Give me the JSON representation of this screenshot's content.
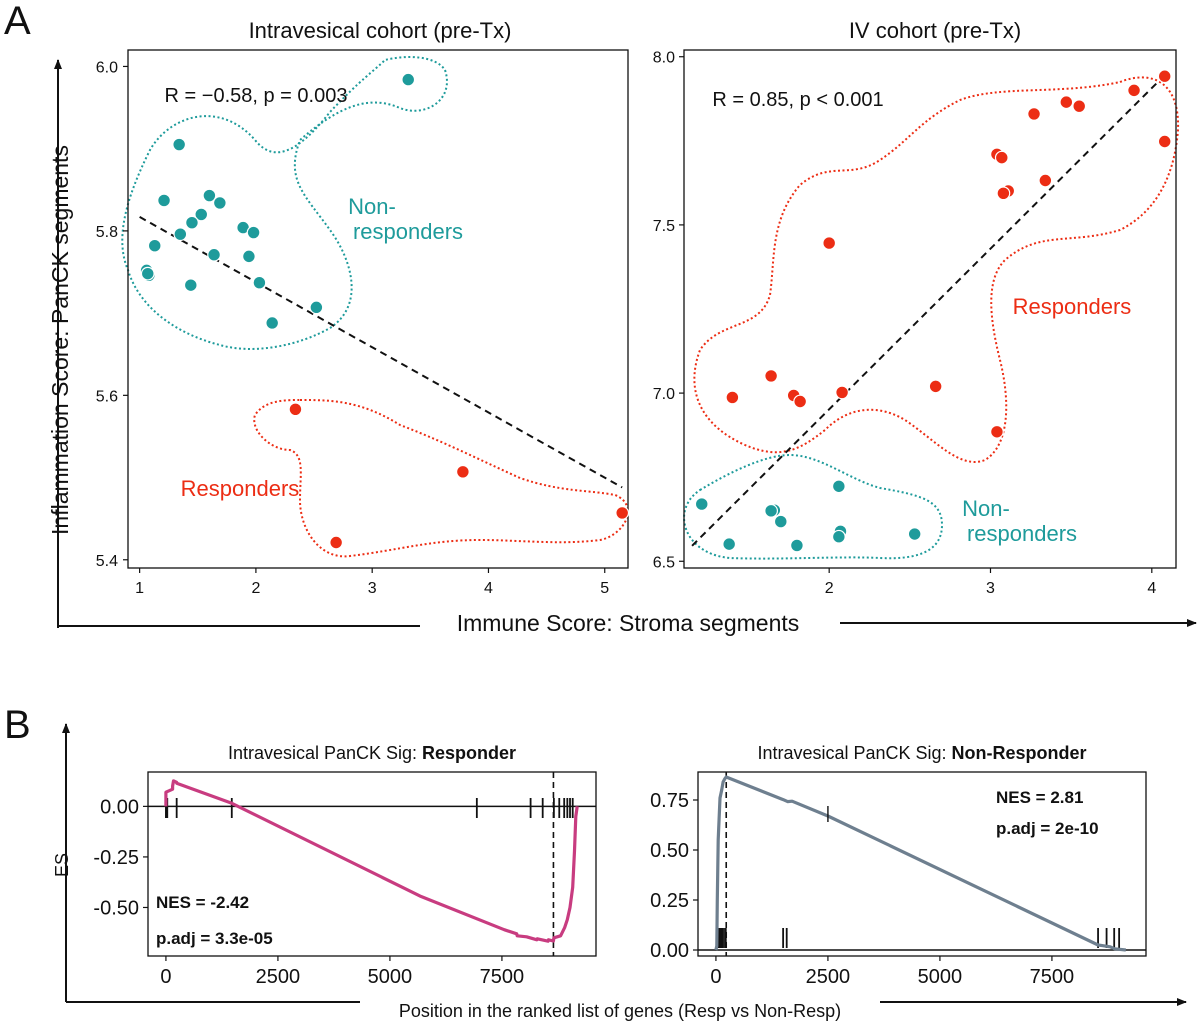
{
  "figure": {
    "panel_a_label": "A",
    "panel_b_label": "B",
    "a_ylabel": "Inflammation Score: PanCK segments",
    "a_xlabel": "Immune Score: Stroma segments",
    "b_ylabel": "ES",
    "b_xlabel": "Position in the ranked list of genes (Resp vs Non-Resp)"
  },
  "colors": {
    "teal": "#1e9b9b",
    "red": "#ec2d14",
    "magenta": "#c83c80",
    "slate": "#6e7f8f",
    "black": "#111111"
  },
  "chart_data": [
    {
      "type": "scatter",
      "title": "Intravesical cohort (pre-Tx)",
      "xlim": [
        0.9,
        5.2
      ],
      "ylim": [
        5.39,
        6.02
      ],
      "xticks": [
        1,
        2,
        3,
        4,
        5
      ],
      "yticks": [
        5.4,
        5.6,
        5.8,
        6.0
      ],
      "ytick_labels": [
        "5.4",
        "5.6",
        "5.8",
        "6.0"
      ],
      "annotation": "R = −0.58, p = 0.003",
      "trend_line": [
        [
          1.0,
          5.817
        ],
        [
          5.15,
          5.488
        ]
      ],
      "groups": [
        {
          "name": "Non-responders",
          "label_lines": [
            "Non-",
            "responders"
          ],
          "color": "teal",
          "points": [
            [
              3.31,
              5.984
            ],
            [
              1.34,
              5.905
            ],
            [
              1.21,
              5.837
            ],
            [
              1.6,
              5.843
            ],
            [
              1.69,
              5.834
            ],
            [
              1.53,
              5.82
            ],
            [
              1.45,
              5.81
            ],
            [
              1.89,
              5.804
            ],
            [
              1.35,
              5.796
            ],
            [
              1.98,
              5.798
            ],
            [
              1.13,
              5.782
            ],
            [
              1.64,
              5.771
            ],
            [
              1.94,
              5.769
            ],
            [
              1.06,
              5.752
            ],
            [
              1.08,
              5.746
            ],
            [
              1.07,
              5.748
            ],
            [
              2.03,
              5.737
            ],
            [
              1.44,
              5.734
            ],
            [
              2.52,
              5.707
            ],
            [
              2.14,
              5.688
            ]
          ]
        },
        {
          "name": "Responders",
          "label_lines": [
            "Responders"
          ],
          "color": "red",
          "points": [
            [
              2.34,
              5.583
            ],
            [
              3.78,
              5.507
            ],
            [
              5.15,
              5.457
            ],
            [
              2.69,
              5.421
            ]
          ]
        }
      ]
    },
    {
      "type": "scatter",
      "title": "IV cohort (pre-Tx)",
      "xlim": [
        1.1,
        4.15
      ],
      "ylim": [
        6.48,
        8.02
      ],
      "xticks": [
        2,
        3,
        4
      ],
      "yticks": [
        6.5,
        7.0,
        7.5,
        8.0
      ],
      "ytick_labels": [
        "6.5",
        "7.0",
        "7.5",
        "8.0"
      ],
      "annotation": "R = 0.85, p < 0.001",
      "trend_line": [
        [
          1.15,
          6.546
        ],
        [
          4.08,
          7.945
        ]
      ],
      "groups": [
        {
          "name": "Responders",
          "label_lines": [
            "Responders"
          ],
          "color": "red",
          "points": [
            [
              4.08,
              7.942
            ],
            [
              3.89,
              7.9
            ],
            [
              3.47,
              7.865
            ],
            [
              3.55,
              7.853
            ],
            [
              3.27,
              7.83
            ],
            [
              4.08,
              7.748
            ],
            [
              3.04,
              7.71
            ],
            [
              3.07,
              7.7
            ],
            [
              3.34,
              7.632
            ],
            [
              3.11,
              7.601
            ],
            [
              3.08,
              7.594
            ],
            [
              2.0,
              7.446
            ],
            [
              1.64,
              7.051
            ],
            [
              2.66,
              7.02
            ],
            [
              2.08,
              7.002
            ],
            [
              1.78,
              6.993
            ],
            [
              1.4,
              6.987
            ],
            [
              1.82,
              6.975
            ],
            [
              3.04,
              6.885
            ]
          ]
        },
        {
          "name": "Non-responders",
          "label_lines": [
            "Non-",
            "responders"
          ],
          "color": "teal",
          "points": [
            [
              2.06,
              6.723
            ],
            [
              1.21,
              6.67
            ],
            [
              1.66,
              6.652
            ],
            [
              1.64,
              6.65
            ],
            [
              1.7,
              6.618
            ],
            [
              2.07,
              6.589
            ],
            [
              2.53,
              6.581
            ],
            [
              2.06,
              6.573
            ],
            [
              1.38,
              6.551
            ],
            [
              1.8,
              6.547
            ]
          ]
        }
      ]
    },
    {
      "type": "line",
      "title_prefix": "Intravesical PanCK Sig: ",
      "title_bold": "Responder",
      "xlim": [
        -400,
        9600
      ],
      "ylim": [
        -0.74,
        0.17
      ],
      "xticks": [
        0,
        2500,
        5000,
        7500
      ],
      "xtick_labels": [
        "0",
        "2500",
        "5000",
        "7500"
      ],
      "yticks": [
        0.0,
        -0.25,
        -0.5
      ],
      "ytick_labels": [
        "0.00",
        "-0.25",
        "-0.50"
      ],
      "peak_x": 8650,
      "nes": "NES = -2.42",
      "padj": "p.adj = 3.3e-05",
      "curve": {
        "x": [
          0,
          0,
          150,
          150,
          170,
          240,
          240,
          1470,
          5640,
          5690,
          7550,
          7830,
          7840,
          8050,
          8280,
          8290,
          8530,
          8540,
          8650,
          8660,
          8810,
          8900,
          8960,
          9020,
          9080,
          9120,
          9150,
          9180
        ],
        "y": [
          0.0,
          0.07,
          0.085,
          0.1,
          0.126,
          0.119,
          0.114,
          0.015,
          -0.44,
          -0.445,
          -0.61,
          -0.63,
          -0.64,
          -0.645,
          -0.66,
          -0.655,
          -0.667,
          -0.66,
          -0.666,
          -0.65,
          -0.64,
          -0.6,
          -0.56,
          -0.5,
          -0.4,
          -0.22,
          -0.05,
          0.0
        ]
      },
      "hits": [
        0,
        30,
        240,
        1470,
        6940,
        8960,
        9020,
        9080,
        8140,
        8410,
        8660,
        8780,
        8890
      ]
    },
    {
      "type": "line",
      "title_prefix": "Intravesical PanCK Sig: ",
      "title_bold": "Non-Responder",
      "xlim": [
        -400,
        9600
      ],
      "ylim": [
        -0.03,
        0.89
      ],
      "xticks": [
        0,
        2500,
        5000,
        7500
      ],
      "xtick_labels": [
        "0",
        "2500",
        "5000",
        "7500"
      ],
      "yticks": [
        0.0,
        0.25,
        0.5,
        0.75
      ],
      "ytick_labels": [
        "0.00",
        "0.25",
        "0.50",
        "0.75"
      ],
      "peak_x": 230,
      "nes": "NES = 2.81",
      "padj": "p.adj = 2e-10",
      "curve": {
        "x": [
          0,
          20,
          30,
          50,
          90,
          130,
          160,
          200,
          230,
          1500,
          1600,
          1700,
          2500,
          8530,
          8620,
          8800,
          8900,
          9150
        ],
        "y": [
          0.0,
          0.02,
          0.25,
          0.55,
          0.76,
          0.8,
          0.84,
          0.857,
          0.865,
          0.752,
          0.742,
          0.744,
          0.67,
          0.025,
          0.022,
          0.016,
          0.006,
          0.0
        ]
      },
      "hits": [
        40,
        60,
        80,
        110,
        140,
        180,
        220,
        1500,
        1580,
        8530,
        8720,
        8890,
        9000
      ],
      "spike": {
        "x": 2500,
        "y0": 0.64,
        "y1": 0.72
      }
    }
  ]
}
